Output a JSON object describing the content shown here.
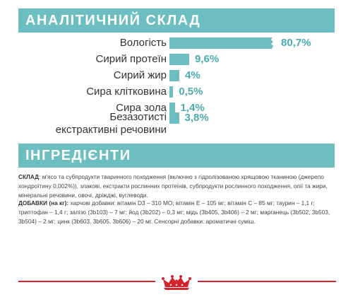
{
  "analysis": {
    "title": "АНАЛІТИЧНИЙ СКЛАД",
    "accent_color": "#6cbec0",
    "value_color": "#4aacaf",
    "rows": [
      {
        "label": "Вологість",
        "value": "80,7%",
        "percent": 80.7
      },
      {
        "label": "Сирий протеїн",
        "value": "9,6%",
        "percent": 9.6
      },
      {
        "label": "Сирий жир",
        "value": "4%",
        "percent": 4
      },
      {
        "label": "Сира клітковина",
        "value": "0,5%",
        "percent": 0.5
      },
      {
        "label": "Сира зола",
        "value": "1,4%",
        "percent": 1.4
      },
      {
        "label_line1": "Безазотисті",
        "label_line2": "екстрактивні речовини",
        "value": "3,8%",
        "percent": 3.8
      }
    ]
  },
  "ingredients": {
    "title": "ІНГРЕДІЄНТИ",
    "composition_heading": "СКЛАД",
    "composition_text": ": м'ясо та субпродукти тваринного походження (включно з гідролізованою хрящовою тканиною (джерело хондроїтину 0,002%)), злакові, екстракти рослинних протеїнів, субпродукти рослинного походження, олії та жири, мінеральні речовини, овочі, дріжджі, вуглеводи.",
    "additives_heading": "ДОБАВКИ (на кг):",
    "additives_text": " харчові добавки: вітамін D3 – 310 МО; вітамін Е – 105 мг; вітамін С – 85 мг; таурин – 1,1 г; триптофан – 1,4 г; залізо (3b103) – 7 мг; йод (3b202) – 0,3 мг; мідь (3b405, 3b406) – 2 мг; марганець (3b502, 3b503, 3b504) – 2 мг; цинк (3b603, 3b605, 3b606) – 20 мг. Сенсорні добавки: ароматичні суміш."
  },
  "footer": {
    "logo_icon": "royal-canin-crown-icon",
    "line_color": "#d4232a"
  }
}
